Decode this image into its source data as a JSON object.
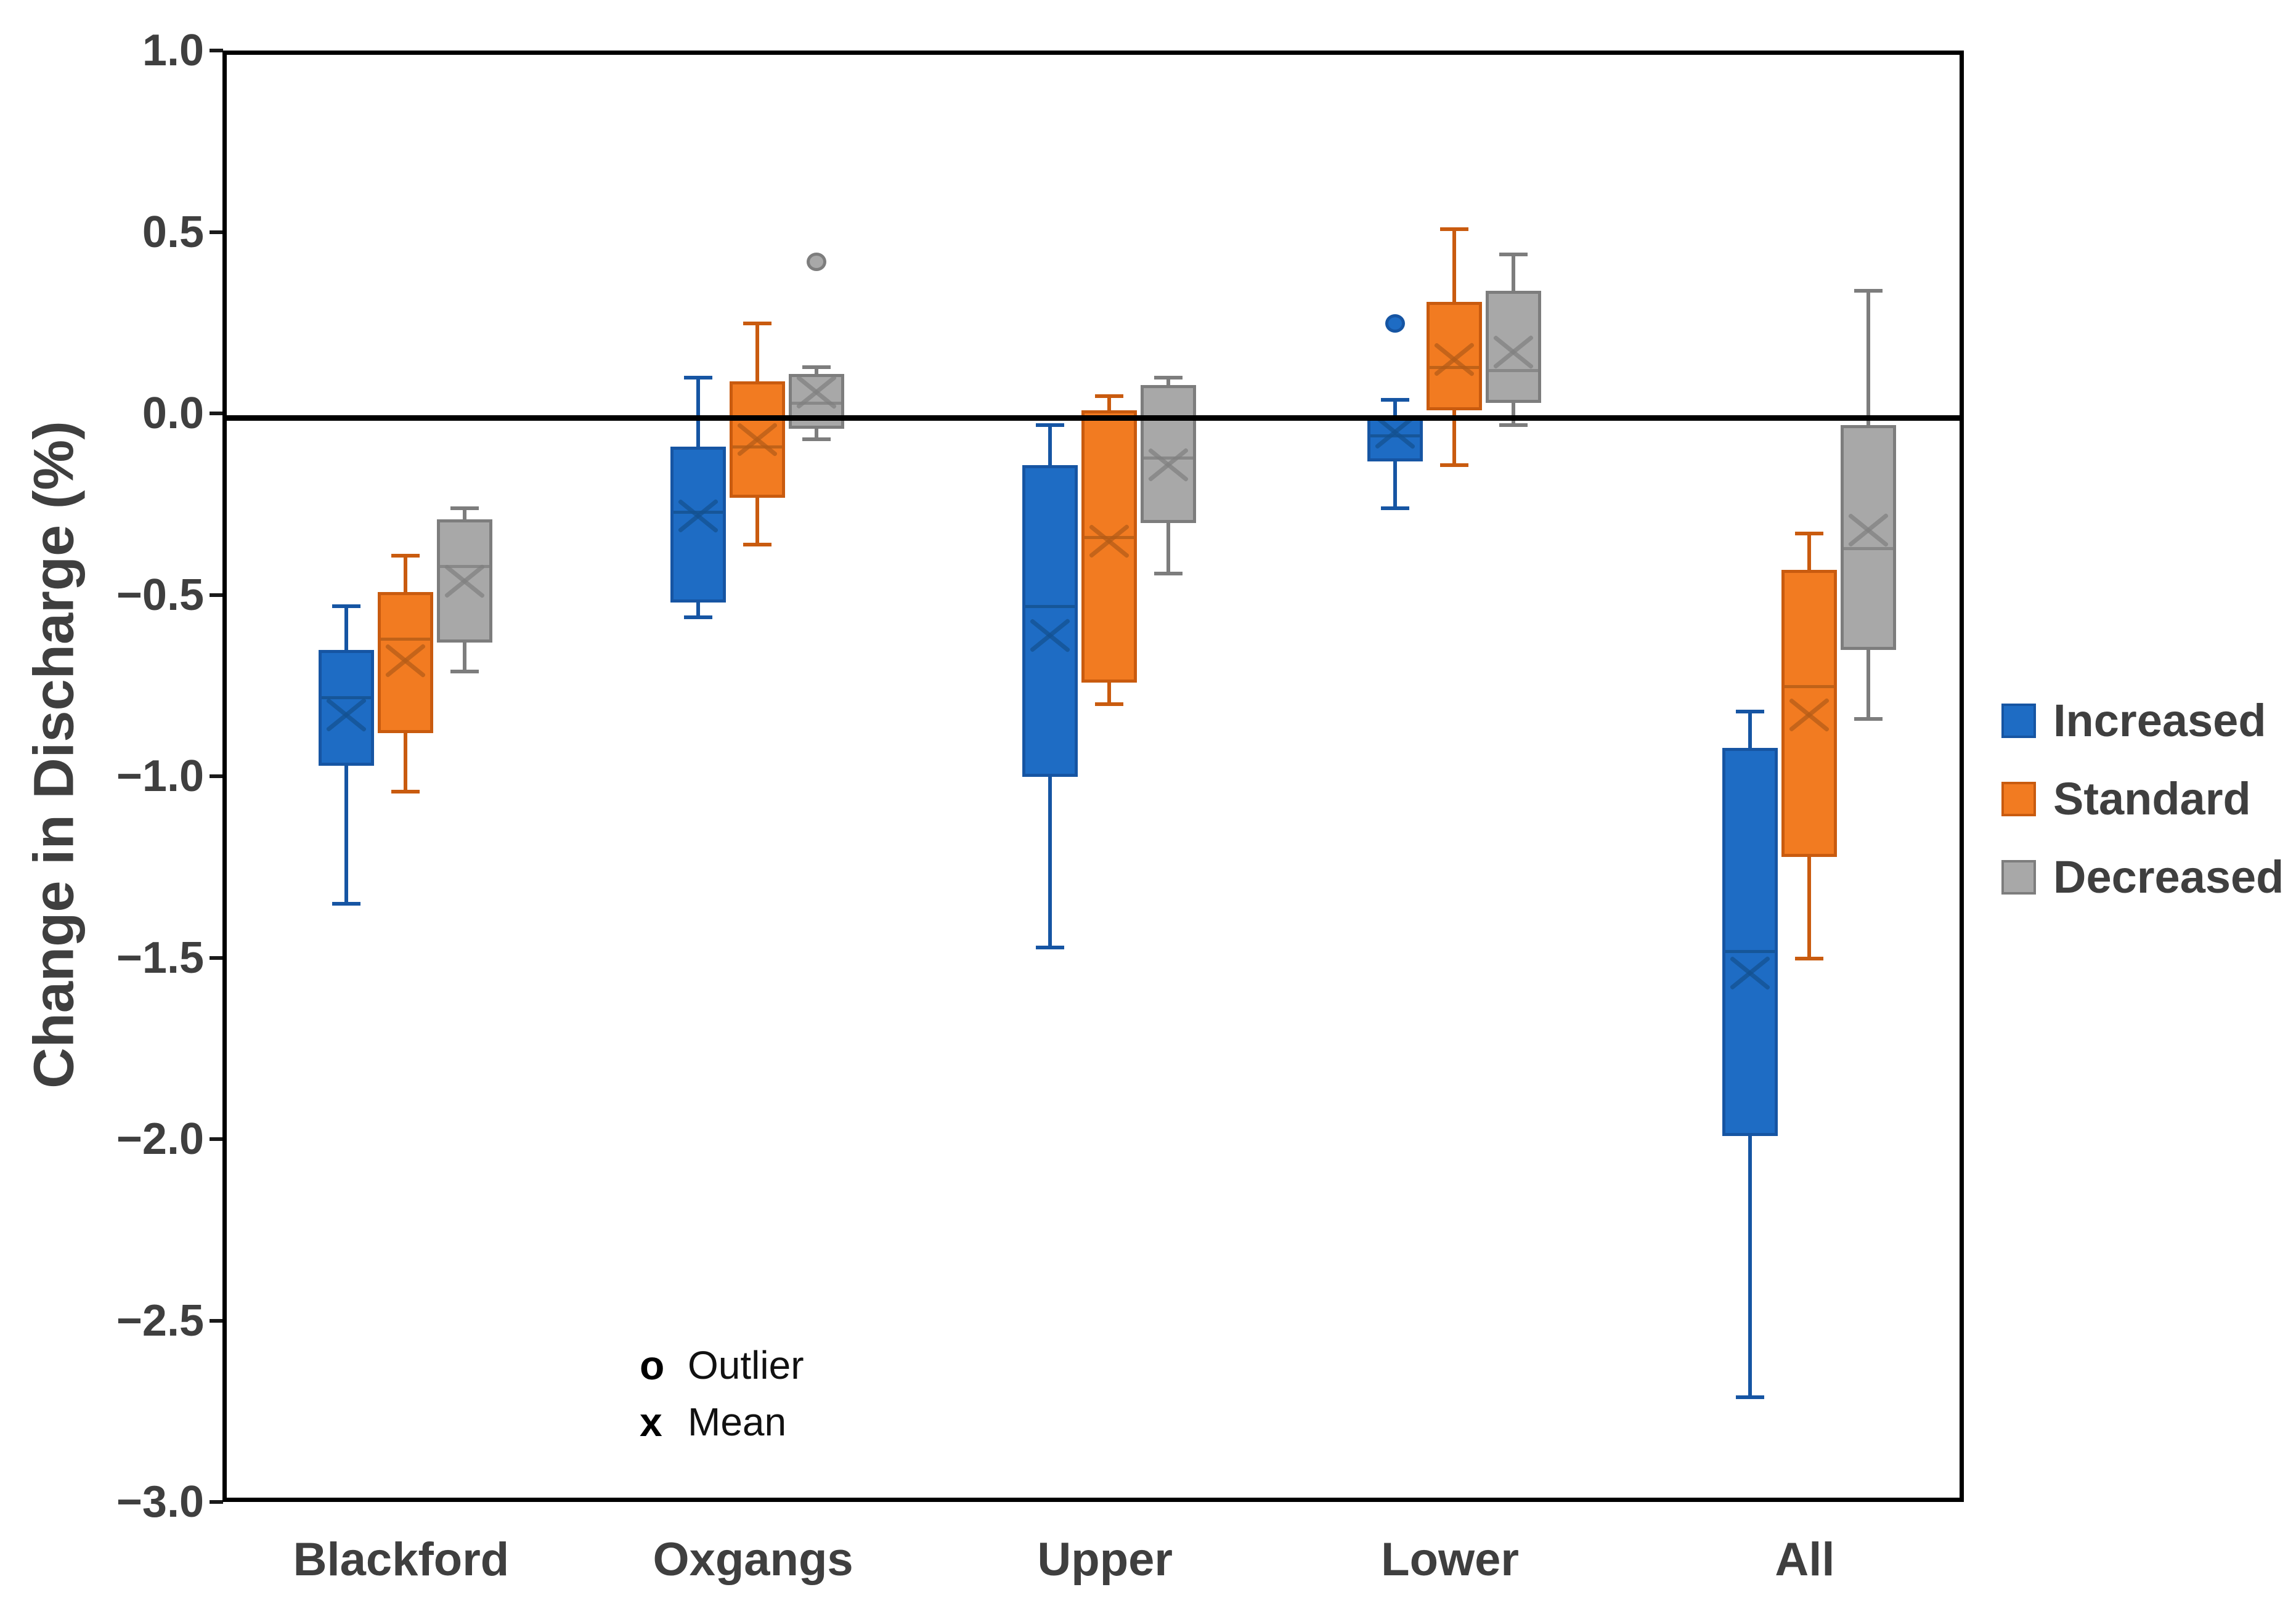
{
  "figure": {
    "background": "#FFFFFF"
  },
  "colors": {
    "axis_text": "#3F3F3F",
    "plot_border": "#000000",
    "zero_line": "#000000",
    "tick_mark": "#1A1A1A",
    "key_text": "#111111"
  },
  "marker_key": {
    "outlier_symbol": "o",
    "outlier_label": "Outlier",
    "mean_symbol": "x",
    "mean_label": "Mean"
  },
  "chart_data": {
    "type": "boxplot",
    "title": "",
    "xlabel": "",
    "ylabel": "Change in Discharge (%)",
    "ylim": [
      -3.0,
      1.0
    ],
    "grid": false,
    "zero_line": true,
    "legend_position": "right",
    "yticks": [
      {
        "value": 1.0,
        "label": "1.0"
      },
      {
        "value": 0.5,
        "label": "0.5"
      },
      {
        "value": 0.0,
        "label": "0.0"
      },
      {
        "value": -0.5,
        "label": "−0.5"
      },
      {
        "value": -1.0,
        "label": "−1.0"
      },
      {
        "value": -1.5,
        "label": "−1.5"
      },
      {
        "value": -2.0,
        "label": "−2.0"
      },
      {
        "value": -2.5,
        "label": "−2.5"
      },
      {
        "value": -3.0,
        "label": "−3.0"
      }
    ],
    "categories": [
      "Blackford",
      "Oxgangs",
      "Upper",
      "Lower",
      "All"
    ],
    "series": [
      {
        "name": "Increased",
        "fill": "#1E6CC4",
        "border": "#1655A3",
        "marker": "#14518F",
        "boxes": [
          {
            "category": "Blackford",
            "whisker_low": -1.34,
            "q1": -0.96,
            "median": -0.77,
            "mean": -0.82,
            "q3": -0.64,
            "whisker_high": -0.52,
            "outliers": []
          },
          {
            "category": "Oxgangs",
            "whisker_low": -0.55,
            "q1": -0.51,
            "median": -0.26,
            "mean": -0.27,
            "q3": -0.08,
            "whisker_high": 0.11,
            "outliers": []
          },
          {
            "category": "Upper",
            "whisker_low": -1.46,
            "q1": -0.99,
            "median": -0.52,
            "mean": -0.6,
            "q3": -0.13,
            "whisker_high": -0.02,
            "outliers": []
          },
          {
            "category": "Lower",
            "whisker_low": -0.25,
            "q1": -0.12,
            "median": -0.05,
            "mean": -0.04,
            "q3": 0.0,
            "whisker_high": 0.05,
            "outliers": [
              0.26
            ]
          },
          {
            "category": "All",
            "whisker_low": -2.7,
            "q1": -1.98,
            "median": -1.47,
            "mean": -1.53,
            "q3": -0.91,
            "whisker_high": -0.81,
            "outliers": []
          }
        ]
      },
      {
        "name": "Standard",
        "fill": "#F27B21",
        "border": "#C95B0F",
        "marker": "#B35C17",
        "boxes": [
          {
            "category": "Blackford",
            "whisker_low": -1.03,
            "q1": -0.87,
            "median": -0.61,
            "mean": -0.67,
            "q3": -0.48,
            "whisker_high": -0.38,
            "outliers": []
          },
          {
            "category": "Oxgangs",
            "whisker_low": -0.35,
            "q1": -0.22,
            "median": -0.08,
            "mean": -0.06,
            "q3": 0.1,
            "whisker_high": 0.26,
            "outliers": []
          },
          {
            "category": "Upper",
            "whisker_low": -0.79,
            "q1": -0.73,
            "median": -0.33,
            "mean": -0.34,
            "q3": 0.02,
            "whisker_high": 0.06,
            "outliers": []
          },
          {
            "category": "Lower",
            "whisker_low": -0.13,
            "q1": 0.02,
            "median": 0.14,
            "mean": 0.16,
            "q3": 0.32,
            "whisker_high": 0.52,
            "outliers": []
          },
          {
            "category": "All",
            "whisker_low": -1.49,
            "q1": -1.21,
            "median": -0.74,
            "mean": -0.82,
            "q3": -0.42,
            "whisker_high": -0.32,
            "outliers": []
          }
        ]
      },
      {
        "name": "Decreased",
        "fill": "#A8A8A8",
        "border": "#7D7D7D",
        "marker": "#7F7F7F",
        "boxes": [
          {
            "category": "Blackford",
            "whisker_low": -0.7,
            "q1": -0.62,
            "median": -0.41,
            "mean": -0.45,
            "q3": -0.28,
            "whisker_high": -0.25,
            "outliers": []
          },
          {
            "category": "Oxgangs",
            "whisker_low": -0.06,
            "q1": -0.03,
            "median": 0.04,
            "mean": 0.07,
            "q3": 0.12,
            "whisker_high": 0.14,
            "outliers": [
              0.43
            ]
          },
          {
            "category": "Upper",
            "whisker_low": -0.43,
            "q1": -0.29,
            "median": -0.11,
            "mean": -0.13,
            "q3": 0.09,
            "whisker_high": 0.11,
            "outliers": []
          },
          {
            "category": "Lower",
            "whisker_low": -0.02,
            "q1": 0.04,
            "median": 0.13,
            "mean": 0.18,
            "q3": 0.35,
            "whisker_high": 0.45,
            "outliers": []
          },
          {
            "category": "All",
            "whisker_low": -0.83,
            "q1": -0.64,
            "median": -0.36,
            "mean": -0.31,
            "q3": -0.02,
            "whisker_high": 0.35,
            "outliers": []
          }
        ]
      }
    ]
  }
}
